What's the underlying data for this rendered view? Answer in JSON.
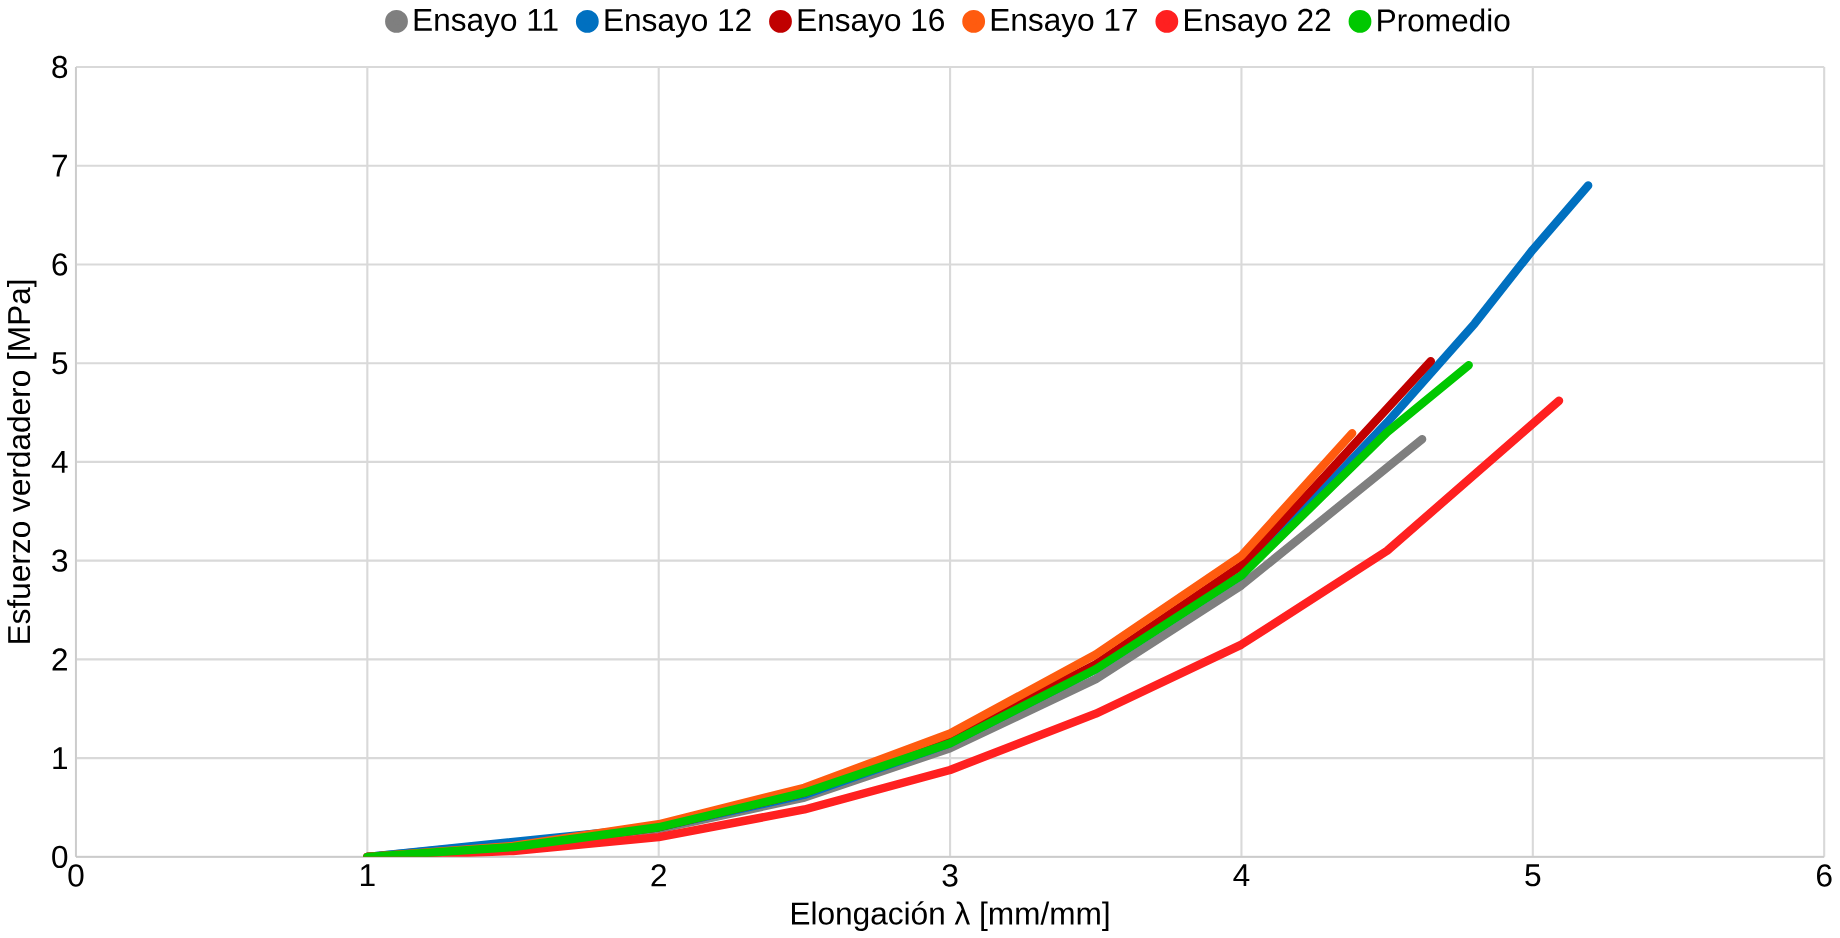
{
  "chart_data": {
    "type": "line",
    "xlabel": "Elongación λ [mm/mm]",
    "ylabel": "Esfuerzo verdadero [MPa]",
    "xlim": [
      0,
      6
    ],
    "ylim": [
      0,
      8
    ],
    "xticks": [
      0,
      1,
      2,
      3,
      4,
      5,
      6
    ],
    "yticks": [
      0,
      1,
      2,
      3,
      4,
      5,
      6,
      7,
      8
    ],
    "grid": true,
    "legend": "top",
    "line_style": "solid",
    "series": [
      {
        "name": "Ensayo 11",
        "color": "#7f7f7f",
        "x": [
          1,
          1.5,
          2,
          2.5,
          3,
          3.5,
          4,
          4.62
        ],
        "values": [
          0,
          null,
          0.28,
          0.6,
          1.1,
          1.8,
          2.75,
          4.23
        ]
      },
      {
        "name": "Ensayo 12",
        "color": "#0070c0",
        "x": [
          1,
          1.5,
          2,
          2.5,
          3,
          3.5,
          4,
          4.5,
          4.8,
          5.0,
          5.19
        ],
        "values": [
          0,
          null,
          0.3,
          0.63,
          1.15,
          1.9,
          2.85,
          4.4,
          5.4,
          6.15,
          6.8
        ]
      },
      {
        "name": "Ensayo 16",
        "color": "#c00000",
        "x": [
          1,
          1.5,
          2,
          2.5,
          3,
          3.5,
          4,
          4.3,
          4.65
        ],
        "values": [
          0,
          0.1,
          0.3,
          0.65,
          1.2,
          1.95,
          2.95,
          3.9,
          5.02
        ]
      },
      {
        "name": "Ensayo 17",
        "color": "#ff5b0f",
        "x": [
          1,
          1.5,
          2,
          2.5,
          3,
          3.5,
          4,
          4.38
        ],
        "values": [
          0,
          0.11,
          0.33,
          0.7,
          1.25,
          2.05,
          3.05,
          4.29
        ]
      },
      {
        "name": "Ensayo 22",
        "color": "#ff2020",
        "x": [
          1,
          1.5,
          2,
          2.5,
          3,
          3.5,
          4,
          4.5,
          5.09
        ],
        "values": [
          0,
          0.06,
          0.2,
          0.48,
          0.88,
          1.45,
          2.15,
          3.1,
          4.62
        ]
      },
      {
        "name": "Promedio",
        "color": "#00c800",
        "x": [
          1,
          1.5,
          2,
          2.5,
          3,
          3.5,
          4,
          4.5,
          4.78
        ],
        "values": [
          0,
          0.1,
          0.3,
          0.65,
          1.15,
          1.9,
          2.85,
          4.3,
          4.98
        ]
      }
    ]
  }
}
